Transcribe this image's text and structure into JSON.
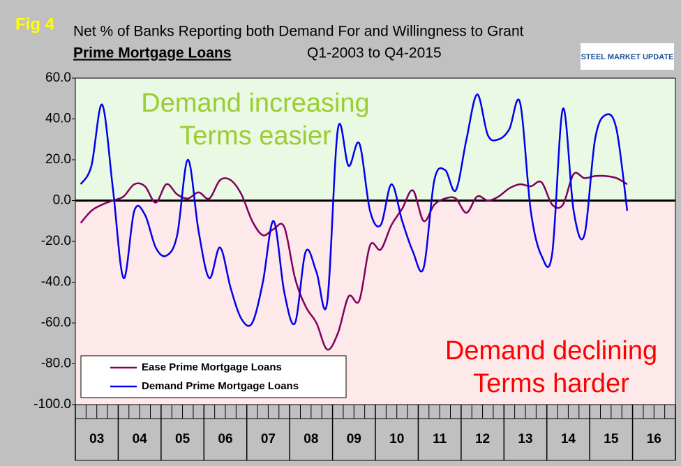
{
  "chart_data": {
    "type": "line",
    "figure_label": "Fig 4",
    "title": "Net % of Banks Reporting both Demand For and Willingness to Grant",
    "subtitle": "Prime Mortgage Loans",
    "period": "Q1-2003 to Q4-2015",
    "logo": "STEEL MARKET UPDATE",
    "annotations": [
      "Demand increasing",
      "Terms easier",
      "Demand declining",
      "Terms harder"
    ],
    "x": [
      2003.125,
      2003.375,
      2003.625,
      2003.875,
      2004.125,
      2004.375,
      2004.625,
      2004.875,
      2005.125,
      2005.375,
      2005.625,
      2005.875,
      2006.125,
      2006.375,
      2006.625,
      2006.875,
      2007.125,
      2007.375,
      2007.625,
      2007.875,
      2008.125,
      2008.375,
      2008.625,
      2008.875,
      2009.125,
      2009.375,
      2009.625,
      2009.875,
      2010.125,
      2010.375,
      2010.625,
      2010.875,
      2011.125,
      2011.375,
      2011.625,
      2011.875,
      2012.125,
      2012.375,
      2012.625,
      2012.875,
      2013.125,
      2013.375,
      2013.625,
      2013.875,
      2014.125,
      2014.375,
      2014.625,
      2014.875,
      2015.125,
      2015.375,
      2015.625,
      2015.875
    ],
    "series": [
      {
        "name": "Ease Prime Mortgage Loans",
        "color": "#800060",
        "values": [
          -11,
          -5,
          -2,
          0,
          2,
          8,
          7,
          -1,
          8,
          3,
          1,
          4,
          1,
          10,
          10,
          3,
          -10,
          -17,
          -14,
          -13,
          -38,
          -52,
          -60,
          -73,
          -65,
          -47,
          -49,
          -22,
          -24,
          -12,
          -4,
          5,
          -10,
          -2,
          1,
          1,
          -6,
          2,
          0,
          2,
          6,
          8,
          7,
          9,
          -2,
          -2,
          13,
          11,
          12,
          12,
          11,
          8
        ]
      },
      {
        "name": "Demand Prime Mortgage Loans",
        "color": "#0000ee",
        "values": [
          8,
          17,
          47,
          6,
          -38,
          -5,
          -7,
          -23,
          -27,
          -17,
          20,
          -15,
          -38,
          -23,
          -43,
          -58,
          -60,
          -40,
          -10,
          -45,
          -60,
          -25,
          -35,
          -50,
          35,
          17,
          28,
          -5,
          -12,
          8,
          -10,
          -25,
          -33,
          10,
          15,
          5,
          30,
          52,
          32,
          30,
          35,
          48,
          -5,
          -27,
          -26,
          45,
          -5,
          -17,
          30,
          42,
          35,
          -5
        ]
      }
    ],
    "xlim": [
      2003,
      2017
    ],
    "xticks": [
      {
        "value": 2003.5,
        "label": "03"
      },
      {
        "value": 2004.5,
        "label": "04"
      },
      {
        "value": 2005.5,
        "label": "05"
      },
      {
        "value": 2006.5,
        "label": "06"
      },
      {
        "value": 2007.5,
        "label": "07"
      },
      {
        "value": 2008.5,
        "label": "08"
      },
      {
        "value": 2009.5,
        "label": "09"
      },
      {
        "value": 2010.5,
        "label": "10"
      },
      {
        "value": 2011.5,
        "label": "11"
      },
      {
        "value": 2012.5,
        "label": "12"
      },
      {
        "value": 2013.5,
        "label": "13"
      },
      {
        "value": 2014.5,
        "label": "14"
      },
      {
        "value": 2015.5,
        "label": "15"
      },
      {
        "value": 2016.5,
        "label": "16"
      }
    ],
    "ylim": [
      -100,
      60
    ],
    "yticks": [
      {
        "value": -100,
        "label": "-100.0"
      },
      {
        "value": -80,
        "label": "-80.0"
      },
      {
        "value": -60,
        "label": "-60.0"
      },
      {
        "value": -40,
        "label": "-40.0"
      },
      {
        "value": -20,
        "label": "-20.0"
      },
      {
        "value": 0,
        "label": "0.0"
      },
      {
        "value": 20,
        "label": "20.0"
      },
      {
        "value": 40,
        "label": "40.0"
      },
      {
        "value": 60,
        "label": "60.0"
      }
    ],
    "zero_line": true,
    "legend": "lower left"
  }
}
